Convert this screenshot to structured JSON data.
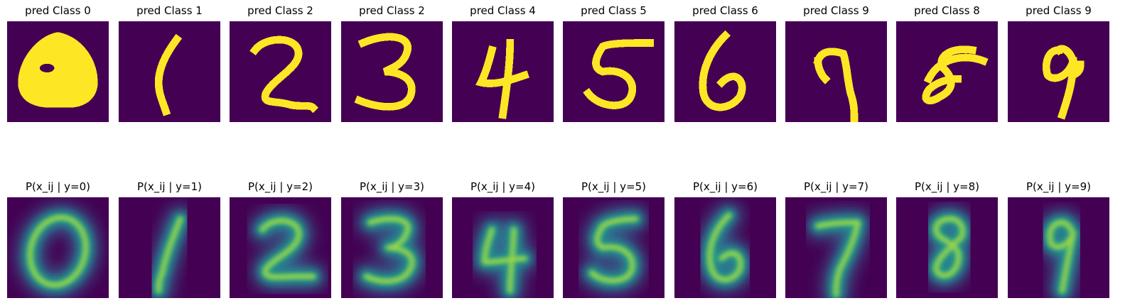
{
  "top_row": {
    "titles": [
      "pred Class 0",
      "pred Class 1",
      "pred Class 2",
      "pred Class 2",
      "pred Class 4",
      "pred Class 5",
      "pred Class 6",
      "pred Class 9",
      "pred Class 8",
      "pred Class 9"
    ],
    "digits_depicted": [
      "0",
      "1",
      "2",
      "3",
      "4",
      "5",
      "6",
      "7",
      "8",
      "9"
    ]
  },
  "bottom_row": {
    "titles": [
      "P(x_ij | y=0)",
      "P(x_ij | y=1)",
      "P(x_ij | y=2)",
      "P(x_ij | y=3)",
      "P(x_ij | y=4)",
      "P(x_ij | y=5)",
      "P(x_ij | y=6)",
      "P(x_ij | y=7)",
      "P(x_ij | y=8)",
      "P(x_ij | y=9)"
    ],
    "digits_depicted": [
      "0",
      "1",
      "2",
      "3",
      "4",
      "5",
      "6",
      "7",
      "8",
      "9"
    ]
  },
  "colors": {
    "background": "#440154",
    "binary_foreground": "#fde725",
    "prob_low": "#31688e",
    "prob_mid": "#21918c",
    "prob_high": "#5ec962",
    "prob_peak": "#fde725"
  }
}
